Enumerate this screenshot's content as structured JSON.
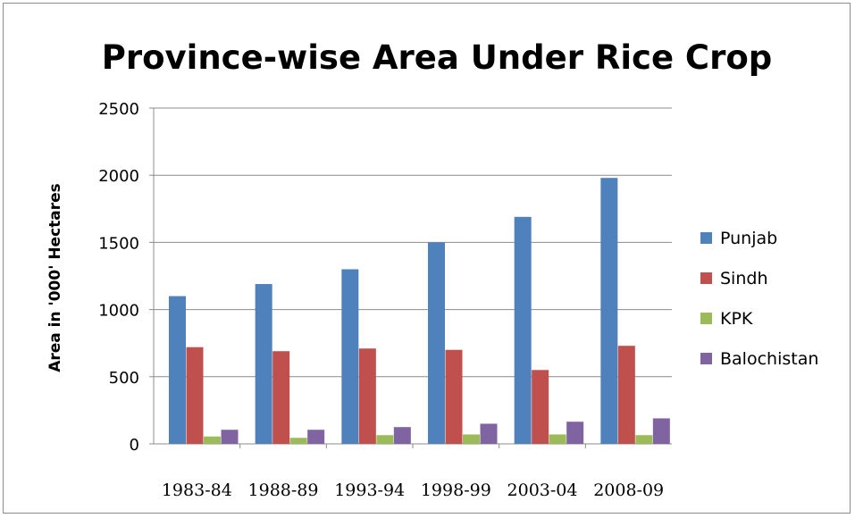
{
  "chart_data": {
    "type": "bar",
    "title": "Province-wise Area Under Rice Crop",
    "xlabel": "",
    "ylabel": "Area in '000' Hectares",
    "ylim": [
      0,
      2500
    ],
    "yticks": [
      0,
      500,
      1000,
      1500,
      2000,
      2500
    ],
    "grid": true,
    "legend_position": "right",
    "categories": [
      "1983-84",
      "1988-89",
      "1993-94",
      "1998-99",
      "2003-04",
      "2008-09"
    ],
    "series": [
      {
        "name": "Punjab",
        "color": "#4f81bd",
        "values": [
          1100,
          1190,
          1300,
          1500,
          1690,
          1980
        ]
      },
      {
        "name": "Sindh",
        "color": "#c0504d",
        "values": [
          720,
          690,
          710,
          700,
          550,
          730
        ]
      },
      {
        "name": "KPK",
        "color": "#9bbb59",
        "values": [
          55,
          45,
          65,
          70,
          70,
          65
        ]
      },
      {
        "name": "Balochistan",
        "color": "#8064a2",
        "values": [
          105,
          105,
          125,
          150,
          165,
          190
        ]
      }
    ]
  }
}
